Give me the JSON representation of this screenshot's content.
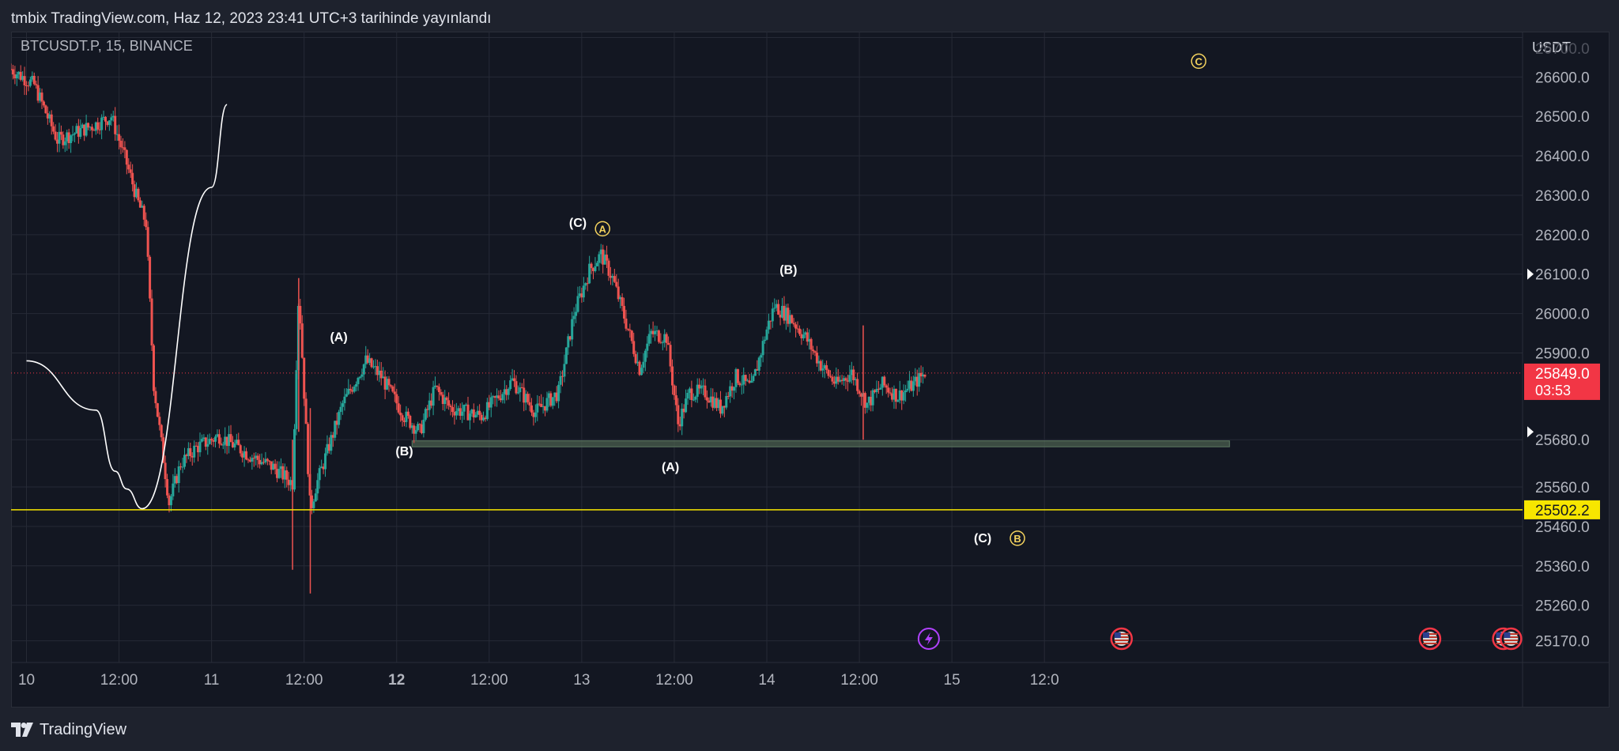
{
  "header": {
    "published_text": "tmbix TradingView.com, Haz 12, 2023 23:41 UTC+3 tarihinde yayınlandı"
  },
  "footer": {
    "brand": "TradingView"
  },
  "colors": {
    "background": "#131722",
    "grid": "#262a36",
    "up_candle": "#26a69a",
    "down_candle": "#ef5350",
    "support_line": "#f7e600",
    "zone_fill": "#4a5e4d",
    "wave_label_yellow": "#f4d35e",
    "price_badge": "#f23645",
    "path": "#ffffff"
  },
  "chart_data": {
    "type": "candlestick",
    "symbol": "BTCUSDT.P, 15, BINANCE",
    "currency_label": "USDT",
    "x_axis": {
      "ticks": [
        "10",
        "12:00",
        "11",
        "12:00",
        "12",
        "12:00",
        "13",
        "12:00",
        "14",
        "12:00",
        "15",
        "12:0"
      ],
      "bold_ticks": [
        "12"
      ],
      "unit": "hours since 9 Jun 00:00",
      "range": [
        22,
        218
      ]
    },
    "y_axis": {
      "range": [
        25115,
        26715
      ],
      "ticks": [
        26700,
        26600,
        26500,
        26400,
        26300,
        26200,
        26100,
        26000,
        25900,
        25680,
        25560,
        25460,
        25360,
        25260,
        25170
      ],
      "tick_labels": [
        "26700.0",
        "26600.0",
        "26500.0",
        "26400.0",
        "26300.0",
        "26200.0",
        "26100.0",
        "26000.0",
        "25900.0",
        "25680.0",
        "25560.0",
        "25460.0",
        "25360.0",
        "25260.0",
        "25170.0"
      ]
    },
    "current_price": {
      "value": 25849.0,
      "label": "25849.0",
      "countdown": "03:53"
    },
    "support_line": {
      "value": 25502.2,
      "label": "25502.2"
    },
    "zone": {
      "x_start": 74,
      "x_end": 180,
      "low": 25662,
      "high": 25677
    },
    "price_path": [
      {
        "x": 24,
        "y": 25880
      },
      {
        "x": 33,
        "y": 25755
      },
      {
        "x": 35.5,
        "y": 25600
      },
      {
        "x": 37,
        "y": 25555
      },
      {
        "x": 39,
        "y": 25505
      },
      {
        "x": 48,
        "y": 26320
      },
      {
        "x": 50,
        "y": 26530
      }
    ],
    "key_points": [
      {
        "x": 22,
        "y": 26620
      },
      {
        "x": 25,
        "y": 26580
      },
      {
        "x": 28,
        "y": 26440
      },
      {
        "x": 33,
        "y": 26480
      },
      {
        "x": 35,
        "y": 26500
      },
      {
        "x": 37,
        "y": 26380
      },
      {
        "x": 38.5,
        "y": 26280
      },
      {
        "x": 39.5,
        "y": 26230
      },
      {
        "x": 40.5,
        "y": 25820
      },
      {
        "x": 42.5,
        "y": 25520
      },
      {
        "x": 44,
        "y": 25620
      },
      {
        "x": 46,
        "y": 25660
      },
      {
        "x": 49,
        "y": 25690
      },
      {
        "x": 53,
        "y": 25640
      },
      {
        "x": 56,
        "y": 25610
      },
      {
        "x": 58.5,
        "y": 25570
      },
      {
        "x": 59.3,
        "y": 26060
      },
      {
        "x": 60.8,
        "y": 25500
      },
      {
        "x": 61.5,
        "y": 25560
      },
      {
        "x": 65,
        "y": 25770
      },
      {
        "x": 68,
        "y": 25880
      },
      {
        "x": 70,
        "y": 25840
      },
      {
        "x": 73,
        "y": 25740
      },
      {
        "x": 75,
        "y": 25700
      },
      {
        "x": 77,
        "y": 25810
      },
      {
        "x": 79,
        "y": 25760
      },
      {
        "x": 83,
        "y": 25740
      },
      {
        "x": 87,
        "y": 25830
      },
      {
        "x": 90,
        "y": 25750
      },
      {
        "x": 93,
        "y": 25800
      },
      {
        "x": 95,
        "y": 26000
      },
      {
        "x": 97,
        "y": 26110
      },
      {
        "x": 98.5,
        "y": 26150
      },
      {
        "x": 100,
        "y": 26090
      },
      {
        "x": 102,
        "y": 25960
      },
      {
        "x": 103.5,
        "y": 25860
      },
      {
        "x": 105,
        "y": 25950
      },
      {
        "x": 107,
        "y": 25940
      },
      {
        "x": 108.5,
        "y": 25720
      },
      {
        "x": 110,
        "y": 25800
      },
      {
        "x": 112,
        "y": 25800
      },
      {
        "x": 114,
        "y": 25760
      },
      {
        "x": 116,
        "y": 25840
      },
      {
        "x": 118,
        "y": 25810
      },
      {
        "x": 120,
        "y": 25960
      },
      {
        "x": 121,
        "y": 26020
      },
      {
        "x": 123,
        "y": 25990
      },
      {
        "x": 125,
        "y": 25940
      },
      {
        "x": 127,
        "y": 25870
      },
      {
        "x": 129,
        "y": 25820
      },
      {
        "x": 131,
        "y": 25850
      },
      {
        "x": 133,
        "y": 25770
      },
      {
        "x": 135,
        "y": 25820
      },
      {
        "x": 137,
        "y": 25790
      },
      {
        "x": 139,
        "y": 25820
      },
      {
        "x": 140.5,
        "y": 25849
      }
    ],
    "annotations": [
      {
        "text": "(C)",
        "x": 95.5,
        "y": 26220,
        "color": "white"
      },
      {
        "text": "A",
        "x": 98.7,
        "y": 26215,
        "color": "yellow",
        "circled": true
      },
      {
        "text": "(B)",
        "x": 122.8,
        "y": 26100,
        "color": "white"
      },
      {
        "text": "(A)",
        "x": 64.5,
        "y": 25930,
        "color": "white"
      },
      {
        "text": "(B)",
        "x": 73,
        "y": 25640,
        "color": "white"
      },
      {
        "text": "(A)",
        "x": 107.5,
        "y": 25600,
        "color": "white"
      },
      {
        "text": "(C)",
        "x": 148,
        "y": 25420,
        "color": "white"
      },
      {
        "text": "B",
        "x": 152.5,
        "y": 25430,
        "color": "yellow",
        "circled": true
      },
      {
        "text": "C",
        "x": 176,
        "y": 26640,
        "color": "yellow",
        "circled": true
      }
    ],
    "event_icons": [
      {
        "type": "lightning",
        "x": 141
      },
      {
        "type": "us-flag",
        "x": 166
      },
      {
        "type": "us-flag",
        "x": 206
      },
      {
        "type": "us-flag",
        "x": 215.5
      },
      {
        "type": "us-flag",
        "x": 216.5
      }
    ]
  }
}
